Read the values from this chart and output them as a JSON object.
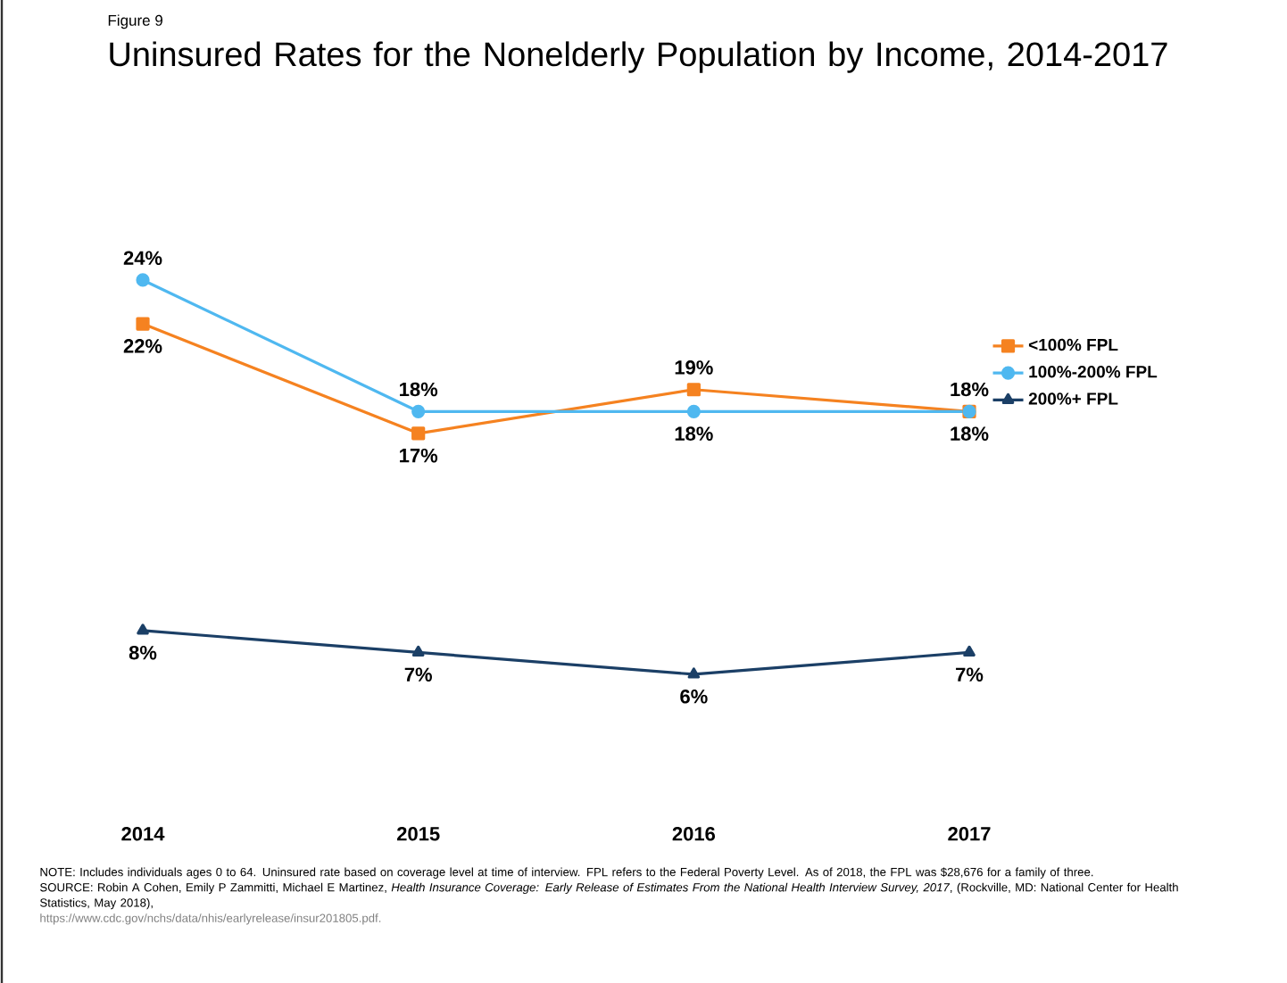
{
  "chart_data": {
    "type": "line",
    "title": "Uninsured Rates for the Nonelderly Population by Income, 2014-2017",
    "categories": [
      "2014",
      "2015",
      "2016",
      "2017"
    ],
    "series": [
      {
        "name": "<100% FPL",
        "color": "#f58220",
        "marker": "square",
        "values": [
          22,
          17,
          19,
          18
        ],
        "value_labels": [
          "22%",
          "17%",
          "19%",
          "18%"
        ]
      },
      {
        "name": "100%-200% FPL",
        "color": "#4fb8f0",
        "marker": "circle",
        "values": [
          24,
          18,
          18,
          18
        ],
        "value_labels": [
          "24%",
          "18%",
          "18%",
          "18%"
        ]
      },
      {
        "name": "200%+ FPL",
        "color": "#1b3f66",
        "marker": "triangle",
        "values": [
          8,
          7,
          6,
          7
        ],
        "value_labels": [
          "8%",
          "7%",
          "6%",
          "7%"
        ]
      }
    ],
    "legend": "right",
    "annotations": [
      "Figure 9",
      "NOTE: Includes individuals ages 0 to 64. Uninsured rate based on coverage level at time of interview. FPL refers to the Federal Poverty Level. As of 2018, the FPL was $28,676 for a family of three.",
      "SOURCE: Robin A Cohen, Emily P Zammitti, Michael E Martinez, *Health Insurance Coverage: Early Release of Estimates From the National Health Interview Survey, 2017*, (Rockville, MD: National Center for Health Statistics, May 2018),",
      "https://www.cdc.gov/nchs/data/nhis/earlyrelease/insur201805.pdf."
    ]
  }
}
